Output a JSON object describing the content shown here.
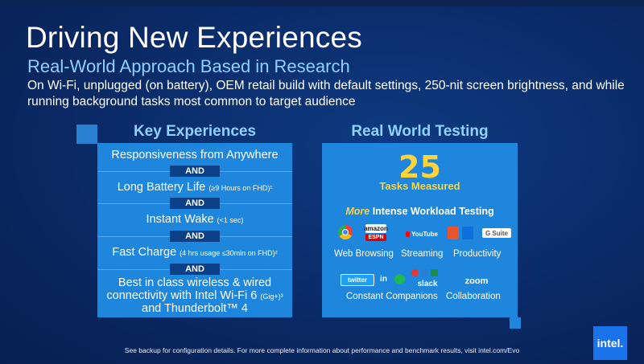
{
  "slide": {
    "title": "Driving New Experiences",
    "subtitle": "Real-World Approach Based in Research",
    "description": "On Wi-Fi, unplugged (on battery), OEM retail build with default settings, 250-nit screen brightness, and while running background tasks most common to target audience"
  },
  "left": {
    "heading": "Key Experiences",
    "connector": "AND",
    "items": [
      {
        "text": "Responsiveness from Anywhere",
        "small": ""
      },
      {
        "text": "Long Battery Life",
        "small": "(≥9 Hours on FHD)¹"
      },
      {
        "text": "Instant Wake",
        "small": "(<1 sec)"
      },
      {
        "text": "Fast Charge",
        "small": "(4 hrs usage ≤30min on FHD)²"
      },
      {
        "text": "Best in class wireless & wired",
        "small": ""
      },
      {
        "text": "connectivity with Intel Wi-Fi 6",
        "small": "(Gig+)³"
      },
      {
        "text": "and Thunderbolt™ 4",
        "small": ""
      }
    ]
  },
  "right": {
    "heading": "Real World Testing",
    "count": "25",
    "count_label": "Tasks Measured",
    "more": "More",
    "intense": "Intense Workload Testing",
    "categories": {
      "web": "Web Browsing",
      "streaming": "Streaming",
      "productivity": "Productivity",
      "companions": "Constant Companions",
      "collaboration": "Collaboration"
    },
    "logos": {
      "amazon": "amazon",
      "espn": "ESPN",
      "youtube": "YouTube",
      "gsuite": "G Suite",
      "twitter": "twitter",
      "linkedin": "in",
      "slack": "slack",
      "zoom": "zoom"
    }
  },
  "footer": {
    "note": "See backup for configuration details.  For more complete information about performance and benchmark results, visit intel.com/Evo",
    "brand": "intel."
  }
}
